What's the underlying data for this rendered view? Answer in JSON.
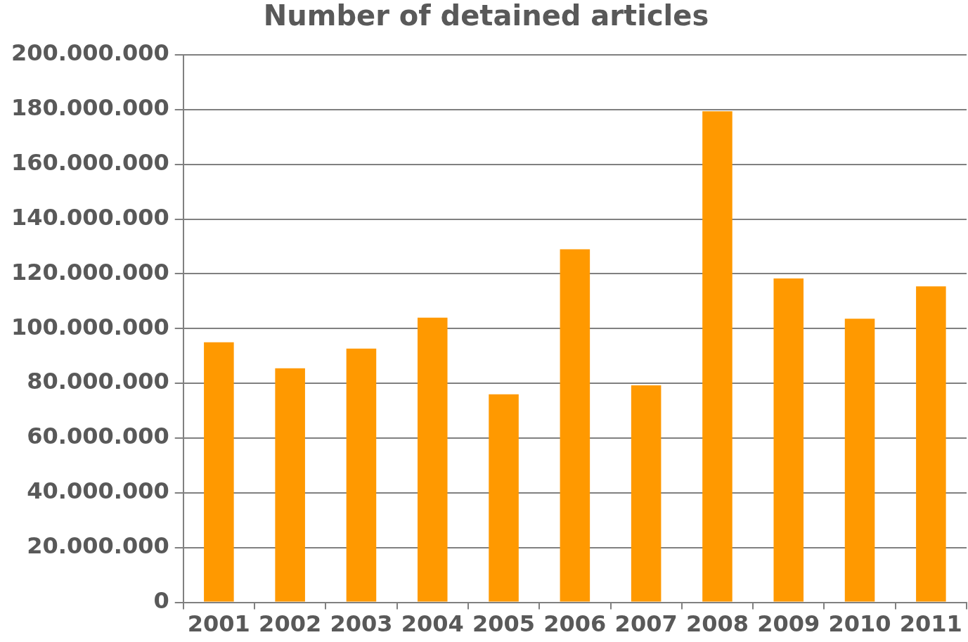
{
  "chart_data": {
    "type": "bar",
    "title": "Number of detained articles",
    "categories": [
      "2001",
      "2002",
      "2003",
      "2004",
      "2005",
      "2006",
      "2007",
      "2008",
      "2009",
      "2010",
      "2011"
    ],
    "values": [
      95000000,
      85500000,
      92700000,
      104000000,
      76000000,
      129000000,
      79300000,
      179400000,
      118300000,
      103600000,
      115400000
    ],
    "color": "#ff9900",
    "ylim": [
      0,
      200000000
    ],
    "yticks": [
      {
        "value": 0,
        "label": "0"
      },
      {
        "value": 20000000,
        "label": "20.000.000"
      },
      {
        "value": 40000000,
        "label": "40.000.000"
      },
      {
        "value": 60000000,
        "label": "60.000.000"
      },
      {
        "value": 80000000,
        "label": "80.000.000"
      },
      {
        "value": 100000000,
        "label": "100.000.000"
      },
      {
        "value": 120000000,
        "label": "120.000.000"
      },
      {
        "value": 140000000,
        "label": "140.000.000"
      },
      {
        "value": 160000000,
        "label": "160.000.000"
      },
      {
        "value": 180000000,
        "label": "180.000.000"
      },
      {
        "value": 200000000,
        "label": "200.000.000"
      }
    ],
    "grid": "y",
    "legend": false
  }
}
